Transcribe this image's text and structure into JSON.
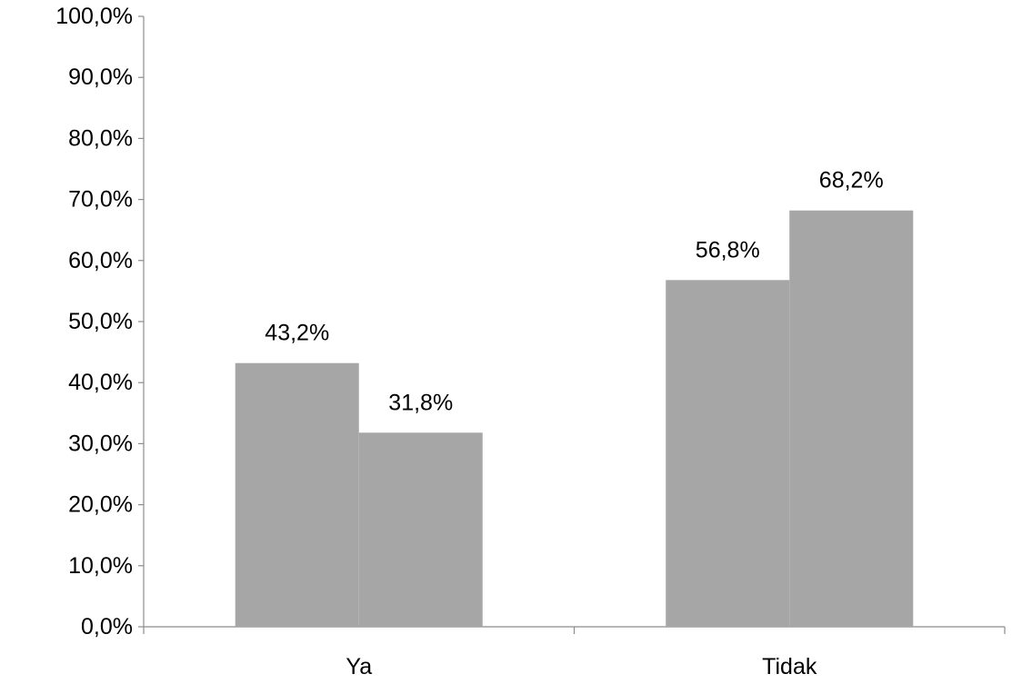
{
  "chart_data": {
    "type": "bar",
    "categories": [
      "Ya",
      "Tidak"
    ],
    "series": [
      {
        "values": [
          43.2,
          56.8
        ],
        "labels": [
          "43,2%",
          "56,8%"
        ]
      },
      {
        "values": [
          31.8,
          68.2
        ],
        "labels": [
          "31,8%",
          "68,2%"
        ]
      }
    ],
    "title": "",
    "xlabel": "",
    "ylabel": "",
    "ylim": [
      0,
      100
    ],
    "yticks": [
      0,
      10,
      20,
      30,
      40,
      50,
      60,
      70,
      80,
      90,
      100
    ],
    "ytick_labels": [
      "0,0%",
      "10,0%",
      "20,0%",
      "30,0%",
      "40,0%",
      "50,0%",
      "60,0%",
      "70,0%",
      "80,0%",
      "90,0%",
      "100,0%"
    ],
    "grid": false,
    "legend": "none",
    "colors": [
      "#a6a6a6",
      "#a6a6a6"
    ],
    "axis_color": "#8c8c8c"
  }
}
